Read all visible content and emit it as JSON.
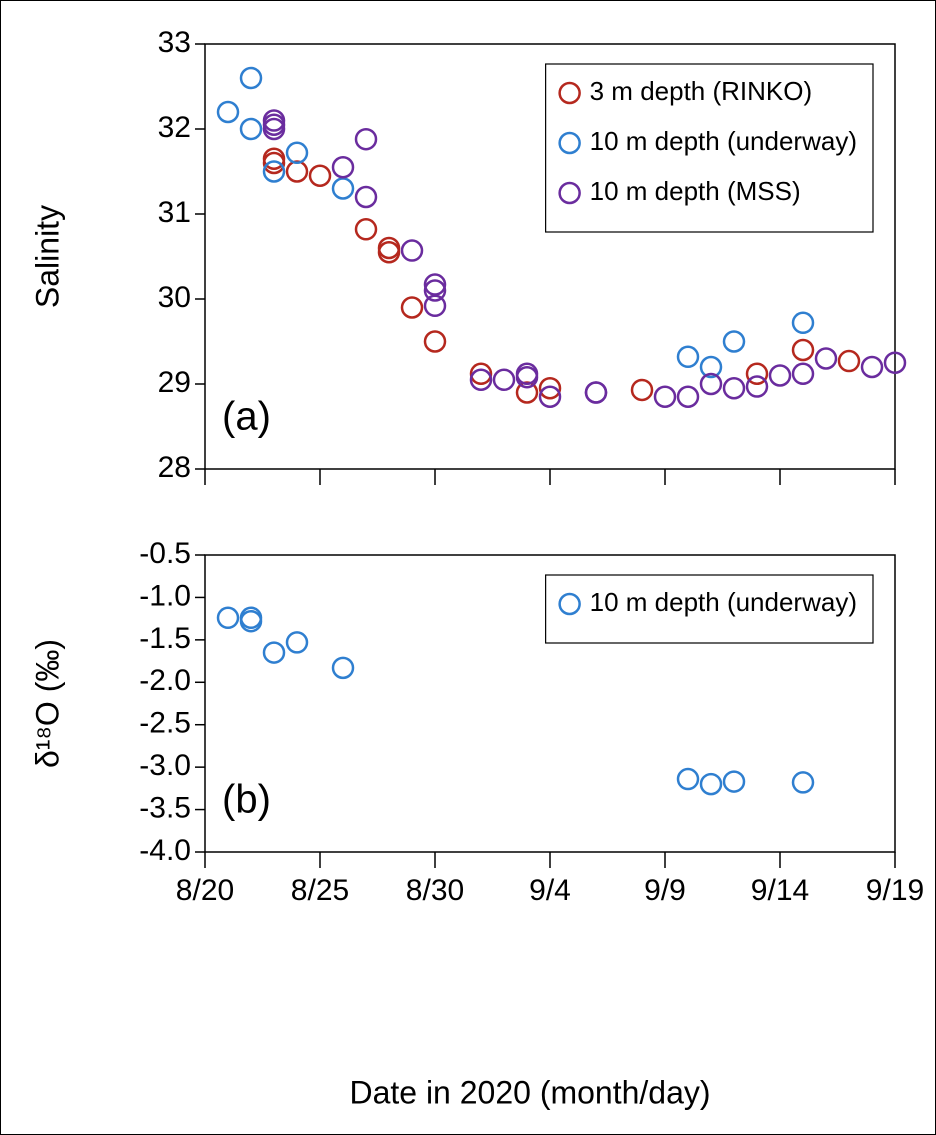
{
  "chart_data": [
    {
      "type": "scatter",
      "annotation": "(a)",
      "y_label": "Salinity",
      "xlim": [
        "2020-08-20",
        "2020-09-19"
      ],
      "xticks": [
        "2020-08-20",
        "2020-08-25",
        "2020-08-30",
        "2020-09-04",
        "2020-09-09",
        "2020-09-14",
        "2020-09-19"
      ],
      "ylim": [
        28,
        33
      ],
      "yticks": [
        28,
        29,
        30,
        31,
        32,
        33
      ],
      "legend": "upper right",
      "series": [
        {
          "name": "3 m depth (RINKO)",
          "color": "#b5281e",
          "x": [
            "2020-08-23",
            "2020-08-23",
            "2020-08-24",
            "2020-08-25",
            "2020-08-27",
            "2020-08-28",
            "2020-08-28",
            "2020-08-29",
            "2020-08-30",
            "2020-09-01",
            "2020-09-03",
            "2020-09-04",
            "2020-09-08",
            "2020-09-13",
            "2020-09-15",
            "2020-09-17"
          ],
          "values": [
            31.65,
            31.6,
            31.5,
            31.45,
            30.82,
            30.6,
            30.55,
            29.9,
            29.5,
            29.12,
            28.9,
            28.95,
            28.93,
            29.12,
            29.4,
            29.27
          ]
        },
        {
          "name": "10 m depth (underway)",
          "color": "#2f7fd0",
          "x": [
            "2020-08-21",
            "2020-08-22",
            "2020-08-22",
            "2020-08-23",
            "2020-08-24",
            "2020-08-26",
            "2020-09-10",
            "2020-09-11",
            "2020-09-12",
            "2020-09-15"
          ],
          "values": [
            32.2,
            32.6,
            32.0,
            31.5,
            31.72,
            31.3,
            29.32,
            29.2,
            29.5,
            29.72
          ]
        },
        {
          "name": "10 m depth (MSS)",
          "color": "#6a2c9e",
          "x": [
            "2020-08-23",
            "2020-08-23",
            "2020-08-23",
            "2020-08-27",
            "2020-08-26",
            "2020-08-27",
            "2020-08-29",
            "2020-08-30",
            "2020-08-30",
            "2020-08-30",
            "2020-09-01",
            "2020-09-02",
            "2020-09-03",
            "2020-09-03",
            "2020-09-04",
            "2020-09-06",
            "2020-09-06",
            "2020-09-09",
            "2020-09-10",
            "2020-09-11",
            "2020-09-12",
            "2020-09-13",
            "2020-09-14",
            "2020-09-15",
            "2020-09-16",
            "2020-09-18",
            "2020-09-19"
          ],
          "values": [
            32.1,
            32.05,
            32.0,
            31.88,
            31.55,
            31.2,
            30.57,
            30.17,
            30.1,
            29.92,
            29.05,
            29.05,
            29.12,
            29.08,
            28.85,
            28.9,
            28.9,
            28.85,
            28.85,
            29.0,
            28.95,
            28.97,
            29.1,
            29.12,
            29.3,
            29.2,
            29.25
          ]
        }
      ]
    },
    {
      "type": "scatter",
      "annotation": "(b)",
      "y_label": "δ¹⁸O (‰)",
      "x_label": "Date in 2020 (month/day)",
      "xlim": [
        "2020-08-20",
        "2020-09-19"
      ],
      "xticks": [
        {
          "value": "2020-08-20",
          "label": "8/20"
        },
        {
          "value": "2020-08-25",
          "label": "8/25"
        },
        {
          "value": "2020-08-30",
          "label": "8/30"
        },
        {
          "value": "2020-09-04",
          "label": "9/4"
        },
        {
          "value": "2020-09-09",
          "label": "9/9"
        },
        {
          "value": "2020-09-14",
          "label": "9/14"
        },
        {
          "value": "2020-09-19",
          "label": "9/19"
        }
      ],
      "ylim": [
        -4,
        -0.5
      ],
      "yticks": [
        {
          "value": -4,
          "label": "-4.0"
        },
        {
          "value": -3.5,
          "label": "-3.5"
        },
        {
          "value": -3,
          "label": "-3.0"
        },
        {
          "value": -2.5,
          "label": "-2.5"
        },
        {
          "value": -2,
          "label": "-2.0"
        },
        {
          "value": -1.5,
          "label": "-1.5"
        },
        {
          "value": -1,
          "label": "-1.0"
        },
        {
          "value": -0.5,
          "label": "-0.5"
        }
      ],
      "legend": "upper right",
      "series": [
        {
          "name": "10 m depth (underway)",
          "color": "#2f7fd0",
          "x": [
            "2020-08-21",
            "2020-08-22",
            "2020-08-22",
            "2020-08-23",
            "2020-08-24",
            "2020-08-26",
            "2020-09-10",
            "2020-09-11",
            "2020-09-12",
            "2020-09-15"
          ],
          "values": [
            -1.24,
            -1.24,
            -1.28,
            -1.65,
            -1.53,
            -1.83,
            -3.14,
            -3.2,
            -3.17,
            -3.18
          ]
        }
      ]
    }
  ]
}
